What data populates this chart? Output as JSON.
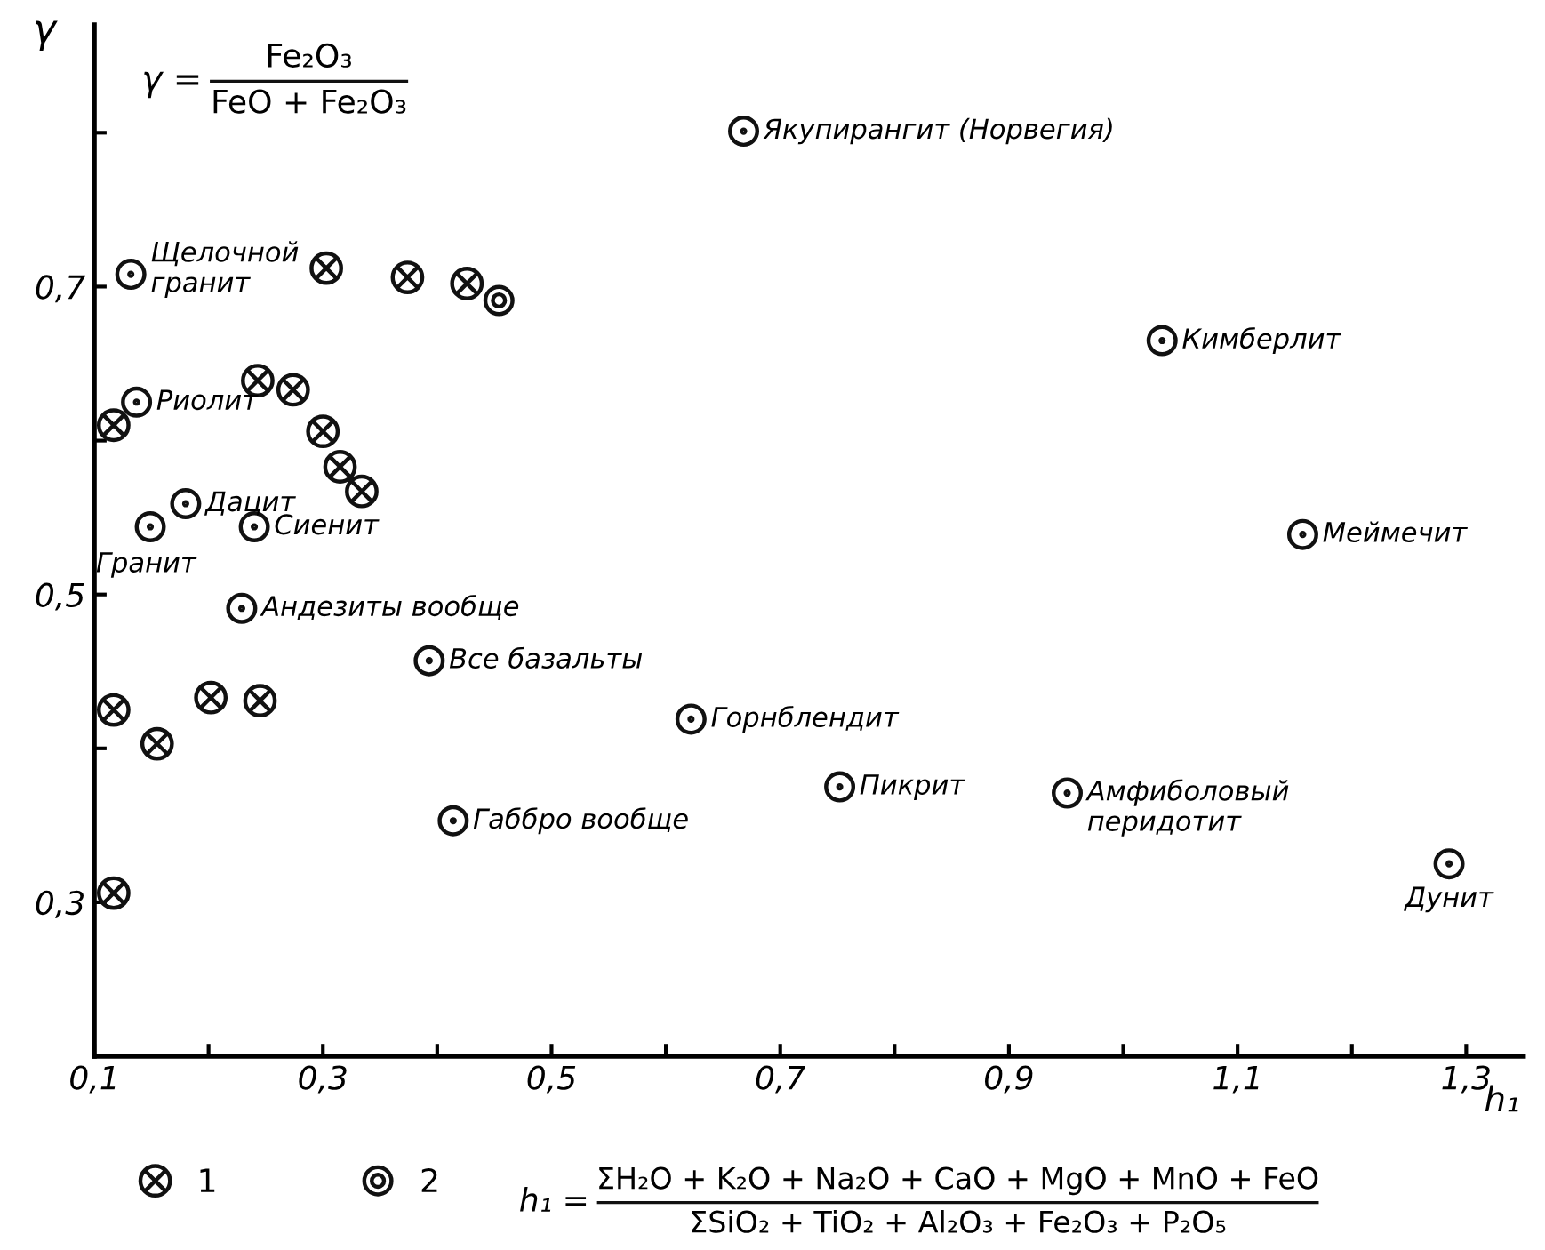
{
  "chart_data": {
    "type": "scatter",
    "xlabel": "h₁",
    "ylabel": "γ",
    "xlim": [
      0.1,
      1.35
    ],
    "ylim": [
      0.2,
      0.87
    ],
    "xticks": [
      {
        "value": 0.1,
        "label": "0,1"
      },
      {
        "value": 0.2,
        "label": null
      },
      {
        "value": 0.3,
        "label": "0,3"
      },
      {
        "value": 0.4,
        "label": null
      },
      {
        "value": 0.5,
        "label": "0,5"
      },
      {
        "value": 0.6,
        "label": null
      },
      {
        "value": 0.7,
        "label": "0,7"
      },
      {
        "value": 0.8,
        "label": null
      },
      {
        "value": 0.9,
        "label": "0,9"
      },
      {
        "value": 1.0,
        "label": null
      },
      {
        "value": 1.1,
        "label": "1,1"
      },
      {
        "value": 1.2,
        "label": null
      },
      {
        "value": 1.3,
        "label": "1,3"
      }
    ],
    "yticks": [
      {
        "value": 0.3,
        "label": "0,3"
      },
      {
        "value": 0.4,
        "label": null
      },
      {
        "value": 0.5,
        "label": "0,5"
      },
      {
        "value": 0.6,
        "label": null
      },
      {
        "value": 0.7,
        "label": "0,7"
      },
      {
        "value": 0.8,
        "label": null
      }
    ],
    "grid": false,
    "legend": "bottom left",
    "series": [
      {
        "color": "#111111",
        "marker": "circle",
        "x": [
          0.132,
          0.137,
          0.18,
          0.149,
          0.24,
          0.229,
          0.393,
          0.414,
          0.622,
          0.752,
          0.951,
          1.285,
          0.668,
          1.034,
          1.157
        ],
        "values": [
          0.708,
          0.625,
          0.559,
          0.544,
          0.544,
          0.491,
          0.457,
          0.353,
          0.419,
          0.375,
          0.371,
          0.325,
          0.801,
          0.665,
          0.539
        ]
      },
      {
        "name": "1",
        "color": "#111111",
        "marker": "cross",
        "x": [
          0.303,
          0.374,
          0.426,
          0.243,
          0.274,
          0.3,
          0.315,
          0.334,
          0.117,
          0.117,
          0.155,
          0.202,
          0.245,
          0.117
        ],
        "values": [
          0.712,
          0.706,
          0.702,
          0.639,
          0.633,
          0.606,
          0.583,
          0.567,
          0.61,
          0.425,
          0.403,
          0.433,
          0.431,
          0.306
        ]
      },
      {
        "name": "2",
        "color": "#111111",
        "x": [
          0.454
        ],
        "values": [
          0.691
        ]
      }
    ],
    "annotations": [
      {
        "text": "Щелочной\nгранит",
        "x": 0.132,
        "y": 0.708
      },
      {
        "text": "Риолит",
        "x": 0.137,
        "y": 0.625
      },
      {
        "text": "Дацит",
        "x": 0.18,
        "y": 0.559
      },
      {
        "text": "Гранит",
        "x": 0.149,
        "y": 0.544
      },
      {
        "text": "Сиенит",
        "x": 0.24,
        "y": 0.544
      },
      {
        "text": "Андезиты вообще",
        "x": 0.229,
        "y": 0.491
      },
      {
        "text": "Все базальты",
        "x": 0.393,
        "y": 0.457
      },
      {
        "text": "Габбро вообще",
        "x": 0.414,
        "y": 0.353
      },
      {
        "text": "Горнблендит",
        "x": 0.622,
        "y": 0.419
      },
      {
        "text": "Пикрит",
        "x": 0.752,
        "y": 0.375
      },
      {
        "text": "Амфиболовый\nперидотит",
        "x": 0.951,
        "y": 0.371
      },
      {
        "text": "Дунит",
        "x": 1.285,
        "y": 0.325
      },
      {
        "text": "Якупирангит (Норвегия)",
        "x": 0.668,
        "y": 0.801
      },
      {
        "text": "Кимберлит",
        "x": 1.034,
        "y": 0.665
      },
      {
        "text": "Меймечит",
        "x": 1.157,
        "y": 0.539
      },
      "γ =",
      "Fe₂O₃",
      "FeO + Fe₂O₃",
      "h₁ =",
      "ΣH₂O + K₂O + Na₂O + CaO + MgO + MnO + FeO",
      "ΣSiO₂ + TiO₂ + Al₂O₃ + Fe₂O₃ + P₂O₅"
    ]
  }
}
